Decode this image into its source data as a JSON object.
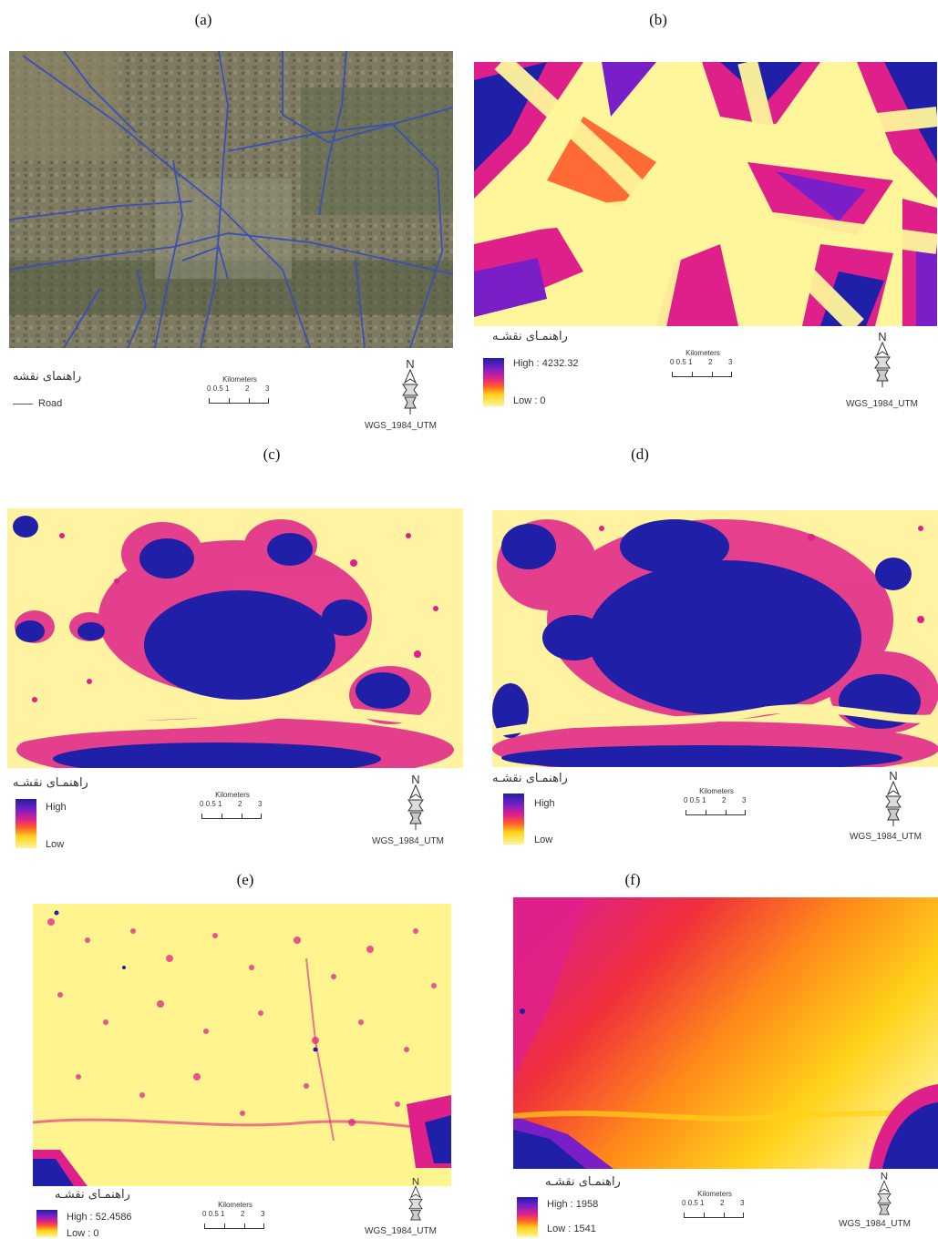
{
  "panels": {
    "a": {
      "label": "(a)",
      "legend_title": "راهنمای نقشه",
      "road_label": "Road",
      "scale_title": "Kilometers",
      "scale_ticks": [
        "0 0.5 1",
        "2",
        "3"
      ],
      "north": "N",
      "projection": "WGS_1984_UTM"
    },
    "b": {
      "label": "(b)",
      "legend_title": "راهنمـای نقشـه",
      "high": "High : 4232.32",
      "low": "Low : 0",
      "scale_title": "Kilometers",
      "scale_ticks": [
        "0 0.5 1",
        "2",
        "3"
      ],
      "north": "N",
      "projection": "WGS_1984_UTM"
    },
    "c": {
      "label": "(c)",
      "legend_title": "راهنمـای نقشـه",
      "high": "High",
      "low": "Low",
      "scale_title": "Kilometers",
      "scale_ticks": [
        "0 0.5 1",
        "2",
        "3"
      ],
      "north": "N",
      "projection": "WGS_1984_UTM"
    },
    "d": {
      "label": "(d)",
      "legend_title": "راهنمـای نقشـه",
      "high": "High",
      "low": "Low",
      "scale_title": "Kilometers",
      "scale_ticks": [
        "0 0.5 1",
        "2",
        "3"
      ],
      "north": "N",
      "projection": "WGS_1984_UTM"
    },
    "e": {
      "label": "(e)",
      "legend_title": "راهنمـای نقشـه",
      "high": "High : 52.4586",
      "low": "Low : 0",
      "scale_title": "Kilometers",
      "scale_ticks": [
        "0 0.5 1",
        "2",
        "3"
      ],
      "north": "N",
      "projection": "WGS_1984_UTM"
    },
    "f": {
      "label": "(f)",
      "legend_title": "راهنمـای نقشـه",
      "high": "High : 1958",
      "low": "Low : 1541",
      "scale_title": "Kilometers",
      "scale_ticks": [
        "0 0.5 1",
        "2",
        "3"
      ],
      "north": "N",
      "projection": "WGS_1984_UTM"
    }
  },
  "colors": {
    "high": "#1f1fa8",
    "mid": "#e0208a",
    "low": "#fff59a",
    "road": "#3b4fb5",
    "satellite": "#7d7a63"
  }
}
